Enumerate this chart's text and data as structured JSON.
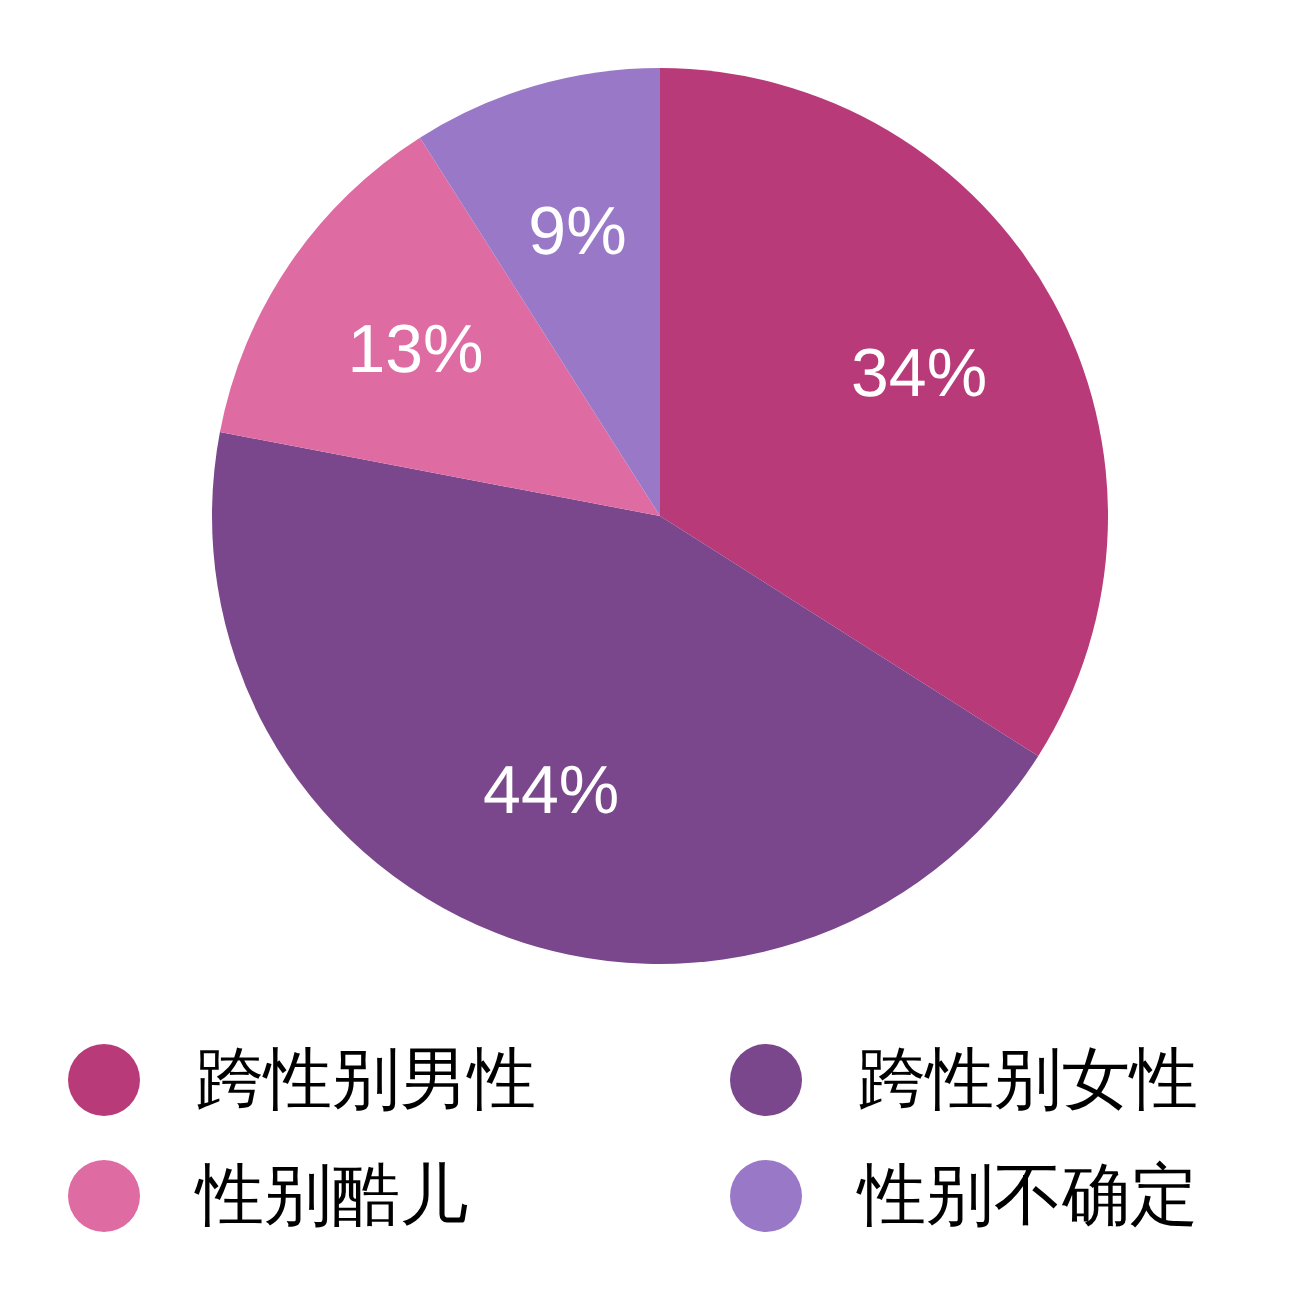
{
  "chart_data": {
    "type": "pie",
    "categories": [
      "跨性别男性",
      "跨性别女性",
      "性别酷儿",
      "性别不确定"
    ],
    "values": [
      34,
      44,
      13,
      9
    ],
    "colors": [
      "#b93a78",
      "#7a468c",
      "#df6ba3",
      "#9a78c8"
    ],
    "value_labels": [
      "34%",
      "44%",
      "13%",
      "9%"
    ],
    "legend": "bottom"
  }
}
